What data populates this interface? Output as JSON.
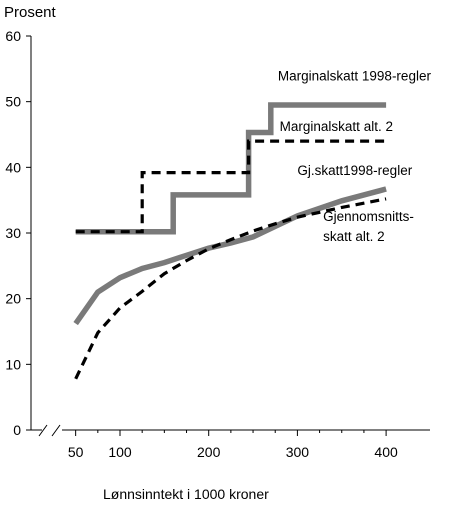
{
  "chart_data": {
    "type": "line",
    "ylabel": "Prosent",
    "xlabel": "Lønnsinntekt i  1000 kroner",
    "ylim": [
      0,
      60
    ],
    "xlim": [
      50,
      400
    ],
    "yticks": [
      0,
      10,
      20,
      30,
      40,
      50,
      60
    ],
    "xticks": [
      50,
      100,
      200,
      300,
      400
    ],
    "axis_break": "x-axis, left of 50",
    "grid": false,
    "legend": "labels placed next to each line",
    "series": [
      {
        "name": "Marginalskatt 1998-regler",
        "style": "solid-thick-gray",
        "color": "#7a7a7a",
        "x": [
          50,
          160,
          160,
          245,
          245,
          270,
          270,
          400
        ],
        "y": [
          30.2,
          30.2,
          35.8,
          35.8,
          45.3,
          45.3,
          49.5,
          49.5
        ]
      },
      {
        "name": "Marginalskatt alt. 2",
        "style": "dashed-black",
        "color": "#000000",
        "x": [
          50,
          125,
          125,
          245,
          245,
          400
        ],
        "y": [
          30.2,
          30.2,
          39.2,
          39.2,
          44.0,
          44.0
        ]
      },
      {
        "name": "Gj.skatt1998-regler",
        "style": "solid-thick-gray",
        "color": "#7a7a7a",
        "x": [
          50,
          75,
          100,
          125,
          150,
          175,
          200,
          225,
          250,
          275,
          300,
          350,
          400
        ],
        "y": [
          16.2,
          21.0,
          23.2,
          24.6,
          25.5,
          26.6,
          27.7,
          28.5,
          29.4,
          31.0,
          32.6,
          34.9,
          36.7
        ]
      },
      {
        "name": "Gjennomsnitts- skatt alt. 2",
        "style": "dashed-black",
        "color": "#000000",
        "x": [
          50,
          75,
          100,
          125,
          150,
          175,
          200,
          225,
          250,
          275,
          300,
          350,
          400
        ],
        "y": [
          7.8,
          14.8,
          18.6,
          21.1,
          23.8,
          25.8,
          27.6,
          29.0,
          30.3,
          31.4,
          32.4,
          33.9,
          35.2
        ]
      }
    ],
    "annotations": [
      {
        "text": "Marginalskatt 1998-regler",
        "x": 278,
        "y": 53.2
      },
      {
        "text": "Marginalskatt alt. 2",
        "x": 280,
        "y": 45.5
      },
      {
        "text": "Gj.skatt1998-regler",
        "x": 300,
        "y": 38.8
      },
      {
        "text": "Gjennomsnitts-",
        "x": 329,
        "y": 31.8
      },
      {
        "text": "skatt alt. 2",
        "x": 329,
        "y": 28.8
      }
    ]
  }
}
